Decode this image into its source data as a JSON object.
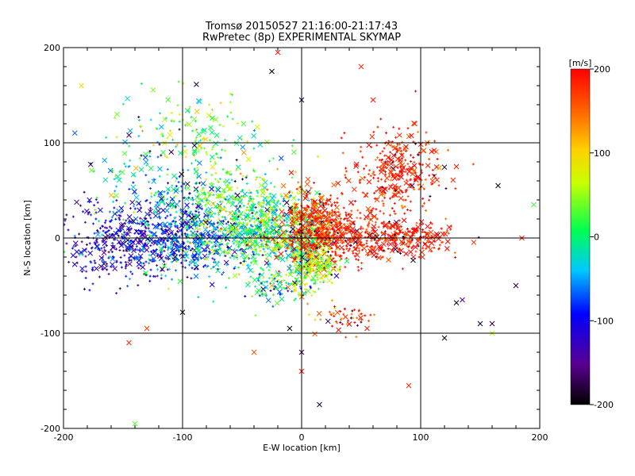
{
  "chart_data": {
    "type": "scatter",
    "title": "Tromsø 20150527 21:16:00-21:17:43",
    "subtitle": "RwPretec (8p) EXPERIMENTAL SKYMAP",
    "xlabel": "E-W location [km]",
    "ylabel": "N-S location [km]",
    "xlim": [
      -200,
      200
    ],
    "ylim": [
      -200,
      200
    ],
    "xticks": [
      "-200",
      "-100",
      "0",
      "100",
      "200"
    ],
    "yticks": [
      "-200",
      "-100",
      "0",
      "100",
      "200"
    ],
    "grid": true,
    "colorbar": {
      "label": "[m/s]",
      "range": [
        -200,
        200
      ],
      "ticks": [
        "-200",
        "-100",
        "0",
        "100",
        "200"
      ],
      "colormap": "black-purple-blue-cyan-green-yellow-orange-red"
    },
    "markers": [
      "x",
      "+"
    ],
    "clusters": [
      {
        "x": -140,
        "y": -5,
        "sx": 35,
        "sy": 20,
        "n": 520,
        "v": -115,
        "sv": 35
      },
      {
        "x": -90,
        "y": 0,
        "sx": 25,
        "sy": 22,
        "n": 420,
        "v": -60,
        "sv": 40
      },
      {
        "x": -55,
        "y": 30,
        "sx": 25,
        "sy": 30,
        "n": 380,
        "v": 25,
        "sv": 45
      },
      {
        "x": -30,
        "y": 5,
        "sx": 15,
        "sy": 18,
        "n": 380,
        "v": 10,
        "sv": 40
      },
      {
        "x": 5,
        "y": -10,
        "sx": 10,
        "sy": 25,
        "n": 440,
        "v": 35,
        "sv": 60
      },
      {
        "x": 15,
        "y": 15,
        "sx": 15,
        "sy": 18,
        "n": 360,
        "v": 175,
        "sv": 30
      },
      {
        "x": 45,
        "y": 0,
        "sx": 30,
        "sy": 15,
        "n": 420,
        "v": 185,
        "sv": 20
      },
      {
        "x": 80,
        "y": 70,
        "sx": 18,
        "sy": 22,
        "n": 320,
        "v": 185,
        "sv": 25
      },
      {
        "x": 95,
        "y": 0,
        "sx": 15,
        "sy": 8,
        "n": 120,
        "v": 185,
        "sv": 20
      },
      {
        "x": -90,
        "y": 110,
        "sx": 30,
        "sy": 22,
        "n": 130,
        "v": 35,
        "sv": 45
      },
      {
        "x": -120,
        "y": 55,
        "sx": 35,
        "sy": 25,
        "n": 140,
        "v": -25,
        "sv": 45
      },
      {
        "x": -20,
        "y": -50,
        "sx": 12,
        "sy": 8,
        "n": 90,
        "v": 0,
        "sv": 60
      },
      {
        "x": 40,
        "y": -85,
        "sx": 12,
        "sy": 8,
        "n": 50,
        "v": 165,
        "sv": 40
      },
      {
        "x": 15,
        "y": -30,
        "sx": 8,
        "sy": 8,
        "n": 80,
        "v": 60,
        "sv": 20
      }
    ],
    "outliers": [
      {
        "x": -185,
        "y": 160,
        "v": 90
      },
      {
        "x": -145,
        "y": 108,
        "v": -170
      },
      {
        "x": -20,
        "y": 195,
        "v": 190
      },
      {
        "x": 50,
        "y": 180,
        "v": 180
      },
      {
        "x": 0,
        "y": 145,
        "v": -180
      },
      {
        "x": -130,
        "y": -95,
        "v": 170
      },
      {
        "x": -145,
        "y": -110,
        "v": 180
      },
      {
        "x": -100,
        "y": -78,
        "v": -190
      },
      {
        "x": 0,
        "y": -120,
        "v": -170
      },
      {
        "x": -40,
        "y": -120,
        "v": 160
      },
      {
        "x": 0,
        "y": -140,
        "v": 190
      },
      {
        "x": 15,
        "y": -175,
        "v": -185
      },
      {
        "x": -140,
        "y": -195,
        "v": 30
      },
      {
        "x": 135,
        "y": -65,
        "v": -150
      },
      {
        "x": 130,
        "y": -68,
        "v": -190
      },
      {
        "x": 150,
        "y": -90,
        "v": -190
      },
      {
        "x": 160,
        "y": -90,
        "v": -180
      },
      {
        "x": 180,
        "y": -50,
        "v": -180
      },
      {
        "x": 185,
        "y": 0,
        "v": 180
      },
      {
        "x": 195,
        "y": 35,
        "v": 20
      },
      {
        "x": 160,
        "y": -100,
        "v": 60
      },
      {
        "x": 165,
        "y": 55,
        "v": -190
      },
      {
        "x": 90,
        "y": -155,
        "v": 180
      },
      {
        "x": 120,
        "y": -105,
        "v": -190
      },
      {
        "x": 95,
        "y": 120,
        "v": 180
      },
      {
        "x": 130,
        "y": 75,
        "v": 190
      },
      {
        "x": 110,
        "y": 60,
        "v": 170
      },
      {
        "x": 55,
        "y": -95,
        "v": 190
      },
      {
        "x": -155,
        "y": 130,
        "v": 40
      },
      {
        "x": -160,
        "y": 45,
        "v": 110
      },
      {
        "x": 60,
        "y": 145,
        "v": 190
      },
      {
        "x": -10,
        "y": -95,
        "v": -200
      },
      {
        "x": -25,
        "y": 175,
        "v": -200
      }
    ]
  }
}
